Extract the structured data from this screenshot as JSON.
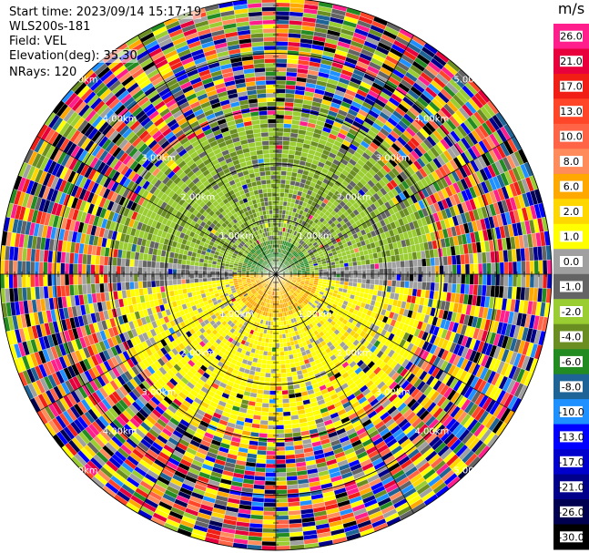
{
  "header": {
    "start_time": "Start time: 2023/09/14 15:17:19",
    "instrument": "WLS200s-181",
    "field": "Field: VEL",
    "elevation": "Elevation(deg): 35.30",
    "nrays": "NRays: 120"
  },
  "colorbar": {
    "unit": "m/s",
    "levels": [
      {
        "label": "26.0",
        "color": "#ff1e8c"
      },
      {
        "label": "21.0",
        "color": "#e8003c"
      },
      {
        "label": "17.0",
        "color": "#f01e14"
      },
      {
        "label": "13.0",
        "color": "#ff4628"
      },
      {
        "label": "10.0",
        "color": "#ff6446"
      },
      {
        "label": "8.0",
        "color": "#ff8c5a"
      },
      {
        "label": "6.0",
        "color": "#ffa800"
      },
      {
        "label": "2.0",
        "color": "#ffd700"
      },
      {
        "label": "1.0",
        "color": "#ffff00"
      },
      {
        "label": "0.0",
        "color": "#a0a0a0"
      },
      {
        "label": "-1.0",
        "color": "#646464"
      },
      {
        "label": "-2.0",
        "color": "#9acd32"
      },
      {
        "label": "-4.0",
        "color": "#6b8e23"
      },
      {
        "label": "-6.0",
        "color": "#228b22"
      },
      {
        "label": "-8.0",
        "color": "#1e6496"
      },
      {
        "label": "-10.0",
        "color": "#1e90ff"
      },
      {
        "label": "-13.0",
        "color": "#0000ff"
      },
      {
        "label": "-17.0",
        "color": "#0000cd"
      },
      {
        "label": "-21.0",
        "color": "#00008b"
      },
      {
        "label": "-26.0",
        "color": "#000050"
      },
      {
        "label": "-30.0",
        "color": "#000000"
      }
    ]
  },
  "chart_data": {
    "type": "heatmap",
    "projection": "polar (PPI)",
    "field": "VEL",
    "units": "m/s",
    "range_rings_km": [
      1.0,
      2.0,
      3.0,
      4.0,
      5.0
    ],
    "range_ring_labels": [
      "1.00km",
      "2.00km",
      "3.00km",
      "4.00km",
      "5.00km"
    ],
    "n_rays": 120,
    "elevation_deg": 35.3,
    "value_range": [
      -30.0,
      26.0
    ],
    "pattern_notes": "north half negative velocities (green -2 to -6), south half positive (yellow 1 to 6), gray 0 near east-west line, random noise beyond about 3 km"
  }
}
